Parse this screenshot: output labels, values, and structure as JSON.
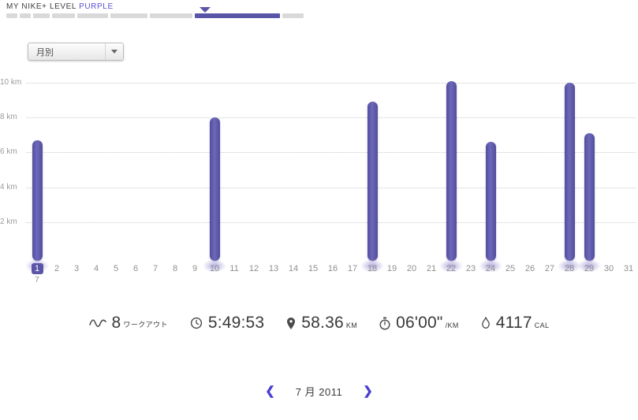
{
  "accent": "#5b55a8",
  "header": {
    "level_label": "MY NIKE+ LEVEL",
    "level_value": "PURPLE",
    "level_bar": {
      "segment_widths": [
        14,
        14,
        21,
        29,
        39,
        47,
        54,
        108,
        27
      ],
      "active_index": 7,
      "marker_left": 253
    }
  },
  "filter": {
    "label": "月別"
  },
  "chart_data": {
    "type": "bar",
    "unit": "km",
    "days_in_month": 31,
    "highlight_day": 1,
    "month_start_label": "7",
    "ylim": [
      0,
      10.5
    ],
    "grid": "dotted",
    "y_ticks": [
      {
        "value": 10,
        "label": "10 km"
      },
      {
        "value": 8,
        "label": "8 km"
      },
      {
        "value": 6,
        "label": "6 km"
      },
      {
        "value": 4,
        "label": "4 km"
      },
      {
        "value": 2,
        "label": "2 km"
      }
    ],
    "bars": [
      {
        "day": 1,
        "km": 6.7
      },
      {
        "day": 10,
        "km": 8.0
      },
      {
        "day": 18,
        "km": 8.9
      },
      {
        "day": 22,
        "km": 10.1
      },
      {
        "day": 24,
        "km": 6.6
      },
      {
        "day": 28,
        "km": 10.0
      },
      {
        "day": 29,
        "km": 7.1
      }
    ]
  },
  "stats": [
    {
      "name": "workouts",
      "icon": "wave-icon",
      "value": "8",
      "unit": "ワークアウト"
    },
    {
      "name": "duration",
      "icon": "clock-icon",
      "value": "5:49:53",
      "unit": ""
    },
    {
      "name": "distance",
      "icon": "pin-icon",
      "value": "58.36",
      "unit": "KM"
    },
    {
      "name": "pace",
      "icon": "stopwatch-icon",
      "value": "06'00\"",
      "unit": "/KM"
    },
    {
      "name": "calories",
      "icon": "flame-icon",
      "value": "4117",
      "unit": "CAL"
    }
  ],
  "pager": {
    "prev_icon": "❮",
    "label": "7 月 2011",
    "next_icon": "❯"
  }
}
